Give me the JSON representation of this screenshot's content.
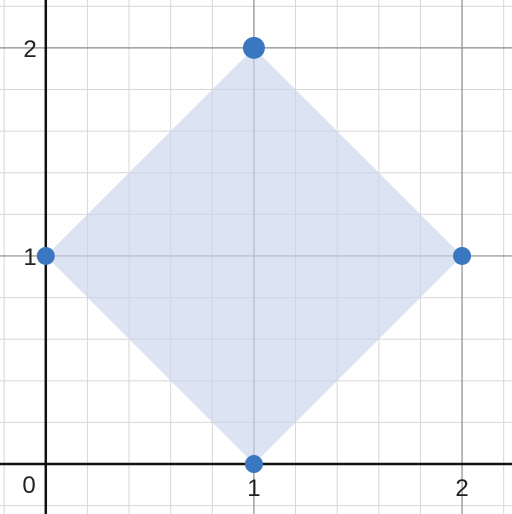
{
  "chart_data": {
    "type": "scatter",
    "title": "",
    "xlabel": "",
    "ylabel": "",
    "xlim": [
      -0.22,
      2.24
    ],
    "ylim": [
      -0.24,
      2.23
    ],
    "grid": true,
    "major_gridlines": true,
    "minor_gridlines": true,
    "minor_step": 0.2,
    "origin_label": "0",
    "x_ticks": [
      1,
      2
    ],
    "x_tick_labels": [
      "1",
      "2"
    ],
    "y_ticks": [
      1,
      2
    ],
    "y_tick_labels": [
      "1",
      "2"
    ],
    "polygon": {
      "vertices": [
        [
          1,
          2
        ],
        [
          2,
          1
        ],
        [
          1,
          0
        ],
        [
          0,
          1
        ]
      ],
      "fill_color": "#c9d6ec",
      "fill_opacity": 0.65
    },
    "points": [
      {
        "x": 1,
        "y": 2
      },
      {
        "x": 2,
        "y": 1
      },
      {
        "x": 1,
        "y": 0
      },
      {
        "x": 0,
        "y": 1
      }
    ],
    "point_color": "#3a77c0",
    "axis_color": "#111111",
    "grid_color_major": "#8a8a8a",
    "grid_color_minor": "#d7d7d7"
  }
}
